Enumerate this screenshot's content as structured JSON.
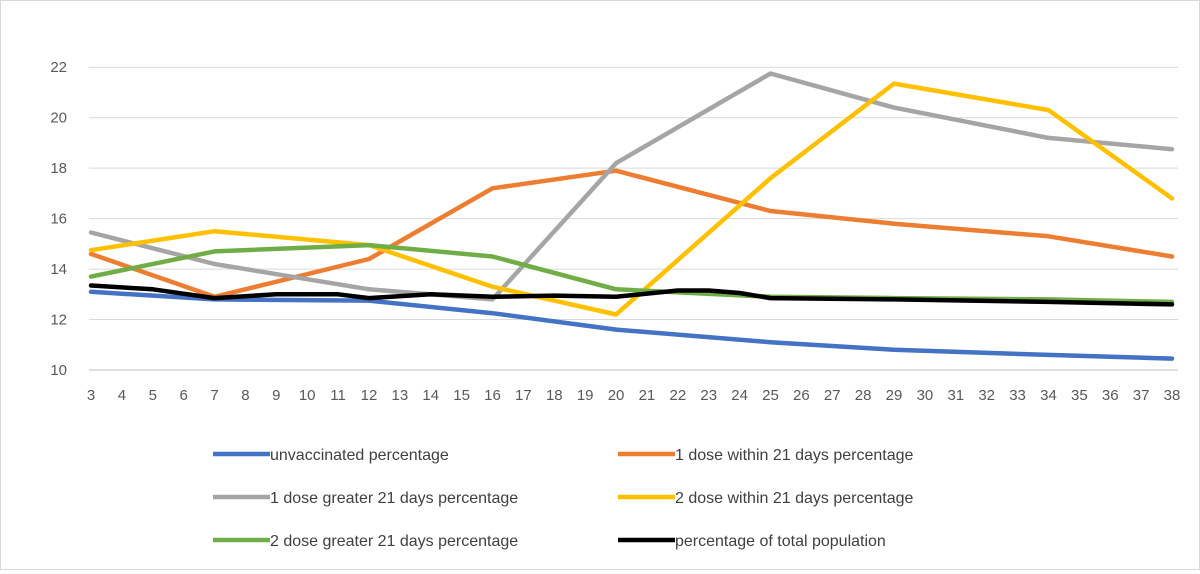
{
  "chart_data": {
    "type": "line",
    "title": "",
    "xlabel": "",
    "ylabel": "",
    "x": [
      3,
      4,
      5,
      6,
      7,
      8,
      9,
      10,
      11,
      12,
      13,
      14,
      15,
      16,
      17,
      18,
      19,
      20,
      21,
      22,
      23,
      24,
      25,
      26,
      27,
      28,
      29,
      30,
      31,
      32,
      33,
      34,
      35,
      36,
      37,
      38
    ],
    "ylim": [
      10,
      23
    ],
    "yticks": [
      10,
      12,
      14,
      16,
      18,
      20,
      22
    ],
    "grid": "horizontal",
    "legend": "bottom",
    "series": [
      {
        "name": "unvaccinated percentage",
        "color": "#4472C4",
        "points": [
          [
            3,
            13.1
          ],
          [
            7,
            12.8
          ],
          [
            12,
            12.75
          ],
          [
            16,
            12.25
          ],
          [
            20,
            11.6
          ],
          [
            25,
            11.1
          ],
          [
            29,
            10.8
          ],
          [
            34,
            10.6
          ],
          [
            38,
            10.45
          ]
        ]
      },
      {
        "name": "1 dose within 21 days percentage",
        "color": "#ED7D31",
        "points": [
          [
            3,
            14.6
          ],
          [
            7,
            12.9
          ],
          [
            12,
            14.4
          ],
          [
            16,
            17.2
          ],
          [
            20,
            17.9
          ],
          [
            25,
            16.3
          ],
          [
            29,
            15.8
          ],
          [
            34,
            15.3
          ],
          [
            38,
            14.5
          ]
        ]
      },
      {
        "name": "1 dose greater 21 days percentage",
        "color": "#A5A5A5",
        "points": [
          [
            3,
            15.45
          ],
          [
            7,
            14.2
          ],
          [
            12,
            13.2
          ],
          [
            16,
            12.8
          ],
          [
            20,
            18.2
          ],
          [
            25,
            21.75
          ],
          [
            29,
            20.4
          ],
          [
            34,
            19.2
          ],
          [
            38,
            18.75
          ]
        ]
      },
      {
        "name": "2 dose within 21 days percentage",
        "color": "#FFC000",
        "points": [
          [
            3,
            14.75
          ],
          [
            7,
            15.5
          ],
          [
            12,
            14.95
          ],
          [
            16,
            13.3
          ],
          [
            20,
            12.2
          ],
          [
            25,
            17.6
          ],
          [
            29,
            21.35
          ],
          [
            34,
            20.3
          ],
          [
            38,
            16.8
          ]
        ]
      },
      {
        "name": "2 dose greater  21 days percentage",
        "color": "#70AD47",
        "points": [
          [
            3,
            13.7
          ],
          [
            7,
            14.7
          ],
          [
            12,
            14.95
          ],
          [
            16,
            14.5
          ],
          [
            20,
            13.2
          ],
          [
            25,
            12.9
          ],
          [
            29,
            12.85
          ],
          [
            34,
            12.8
          ],
          [
            38,
            12.7
          ]
        ]
      },
      {
        "name": "percentage of total population",
        "color": "#000000",
        "points": [
          [
            3,
            13.35
          ],
          [
            5,
            13.2
          ],
          [
            7,
            12.85
          ],
          [
            9,
            13.0
          ],
          [
            11,
            13.0
          ],
          [
            12,
            12.85
          ],
          [
            14,
            13.0
          ],
          [
            16,
            12.9
          ],
          [
            18,
            12.95
          ],
          [
            20,
            12.9
          ],
          [
            22,
            13.15
          ],
          [
            23,
            13.15
          ],
          [
            24,
            13.05
          ],
          [
            25,
            12.85
          ],
          [
            29,
            12.8
          ],
          [
            34,
            12.7
          ],
          [
            38,
            12.6
          ]
        ]
      }
    ]
  }
}
